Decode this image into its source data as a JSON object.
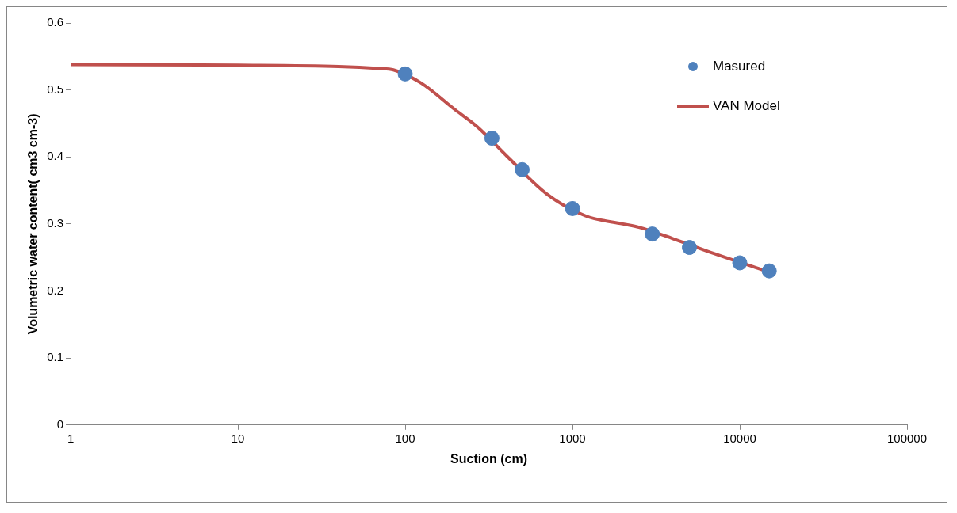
{
  "chart_data": {
    "type": "scatter",
    "xlabel": "Suction (cm)",
    "ylabel": "Volumetric water content( cm3 cm-3)",
    "log": "x",
    "xlim": [
      1,
      100000
    ],
    "xticks": [
      1,
      10,
      100,
      1000,
      10000,
      100000
    ],
    "ylim": [
      0,
      0.6
    ],
    "yticks": [
      0,
      0.1,
      0.2,
      0.3,
      0.4,
      0.5,
      0.6
    ],
    "grid": false,
    "legend": "top right",
    "series": [
      {
        "name": "Masured",
        "color": "#4f81bd",
        "marker": "circle",
        "x": [
          100,
          330,
          500,
          1000,
          3000,
          5000,
          10000,
          15000
        ],
        "values": [
          0.524,
          0.428,
          0.381,
          0.323,
          0.285,
          0.265,
          0.242,
          0.23
        ]
      },
      {
        "name": "VAN Model",
        "type": "line",
        "color": "#c0504d",
        "marker": "none",
        "line_style": "solid",
        "x": [
          1,
          10,
          40,
          70,
          85,
          125,
          200,
          270,
          410,
          700,
          1200,
          2000,
          2500,
          4000,
          7000,
          13500
        ],
        "values": [
          0.538,
          0.537,
          0.535,
          0.532,
          0.53,
          0.51,
          0.47,
          0.445,
          0.4,
          0.345,
          0.312,
          0.3,
          0.295,
          0.278,
          0.256,
          0.232
        ]
      }
    ]
  }
}
